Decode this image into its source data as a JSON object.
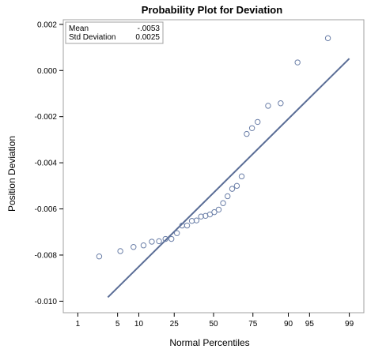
{
  "chart_data": {
    "type": "scatter",
    "title": "Probability Plot for Deviation",
    "xlabel": "Normal Percentiles",
    "ylabel": "Position Deviation",
    "x_scale": "normal-probability",
    "xlim_percent": [
      0.5,
      99.5
    ],
    "ylim": [
      -0.0105,
      0.0022
    ],
    "xticks": [
      {
        "value": 1,
        "label": "1"
      },
      {
        "value": 5,
        "label": "5"
      },
      {
        "value": 10,
        "label": "10"
      },
      {
        "value": 25,
        "label": "25"
      },
      {
        "value": 50,
        "label": "50"
      },
      {
        "value": 75,
        "label": "75"
      },
      {
        "value": 90,
        "label": "90"
      },
      {
        "value": 95,
        "label": "95"
      },
      {
        "value": 99,
        "label": "99"
      }
    ],
    "yticks": [
      {
        "value": 0.002,
        "label": "0.002"
      },
      {
        "value": 0.0,
        "label": "0.000"
      },
      {
        "value": -0.002,
        "label": "-0.002"
      },
      {
        "value": -0.004,
        "label": "-0.004"
      },
      {
        "value": -0.006,
        "label": "-0.006"
      },
      {
        "value": -0.008,
        "label": "-0.008"
      },
      {
        "value": -0.01,
        "label": "-0.010"
      }
    ],
    "grid": false,
    "points": [
      {
        "x": 2.5,
        "y": -0.00806
      },
      {
        "x": 5.5,
        "y": -0.00783
      },
      {
        "x": 8.5,
        "y": -0.00765
      },
      {
        "x": 11.5,
        "y": -0.00758
      },
      {
        "x": 14.5,
        "y": -0.00742
      },
      {
        "x": 17.5,
        "y": -0.0074
      },
      {
        "x": 20.5,
        "y": -0.0073
      },
      {
        "x": 23.5,
        "y": -0.0073
      },
      {
        "x": 26.5,
        "y": -0.00705
      },
      {
        "x": 29.5,
        "y": -0.00672
      },
      {
        "x": 32.5,
        "y": -0.00672
      },
      {
        "x": 35.5,
        "y": -0.00652
      },
      {
        "x": 38.5,
        "y": -0.0065
      },
      {
        "x": 41.5,
        "y": -0.00633
      },
      {
        "x": 44.5,
        "y": -0.0063
      },
      {
        "x": 47.5,
        "y": -0.00624
      },
      {
        "x": 50.5,
        "y": -0.00614
      },
      {
        "x": 53.5,
        "y": -0.00603
      },
      {
        "x": 56.5,
        "y": -0.00575
      },
      {
        "x": 59.5,
        "y": -0.00545
      },
      {
        "x": 62.5,
        "y": -0.00513
      },
      {
        "x": 65.5,
        "y": -0.005
      },
      {
        "x": 68.5,
        "y": -0.00459
      },
      {
        "x": 71.5,
        "y": -0.00275
      },
      {
        "x": 74.5,
        "y": -0.0025
      },
      {
        "x": 77.5,
        "y": -0.00223
      },
      {
        "x": 82.5,
        "y": -0.00153
      },
      {
        "x": 87.5,
        "y": -0.00142
      },
      {
        "x": 92.5,
        "y": 0.00035
      },
      {
        "x": 97.5,
        "y": 0.0014
      }
    ],
    "reference_line": {
      "mean": -0.0053,
      "std": 0.0025,
      "x_from": 3.5,
      "x_to": 99.0
    },
    "inset": {
      "rows": [
        {
          "label": "Mean",
          "value": "-.0053"
        },
        {
          "label": "Std Deviation",
          "value": "0.0025"
        }
      ],
      "placement": "top-left"
    },
    "colors": {
      "marker": "#6b7fa8",
      "line": "#5a6d96",
      "frame": "#a0a0a0"
    }
  }
}
